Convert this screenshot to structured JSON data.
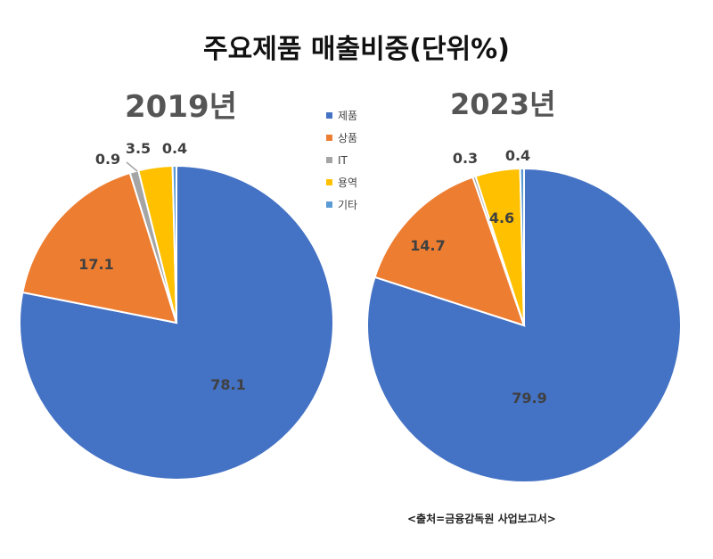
{
  "title": "주요제품 매출비중(단위%)",
  "source": "<출처=금융감독원 사업보고서>",
  "legend": [
    {
      "label": "제품",
      "color": "#4472C4"
    },
    {
      "label": "상품",
      "color": "#ED7D31"
    },
    {
      "label": "IT",
      "color": "#A5A5A5"
    },
    {
      "label": "용역",
      "color": "#FFC000"
    },
    {
      "label": "기타",
      "color": "#5B9BD5"
    }
  ],
  "chart_data": [
    {
      "type": "pie",
      "title": "2019년",
      "categories": [
        "제품",
        "상품",
        "IT",
        "용역",
        "기타"
      ],
      "values": [
        78.1,
        17.1,
        0.9,
        3.5,
        0.4
      ],
      "labels": [
        "78.1",
        "17.1",
        "0.9",
        "3.5",
        "0.4"
      ],
      "colors": [
        "#4472C4",
        "#ED7D31",
        "#A5A5A5",
        "#FFC000",
        "#5B9BD5"
      ]
    },
    {
      "type": "pie",
      "title": "2023년",
      "categories": [
        "제품",
        "상품",
        "IT",
        "용역",
        "기타"
      ],
      "values": [
        79.9,
        14.7,
        0.3,
        4.6,
        0.4
      ],
      "labels": [
        "79.9",
        "14.7",
        "0.3",
        "4.6",
        "0.4"
      ],
      "colors": [
        "#4472C4",
        "#ED7D31",
        "#A5A5A5",
        "#FFC000",
        "#5B9BD5"
      ]
    }
  ]
}
